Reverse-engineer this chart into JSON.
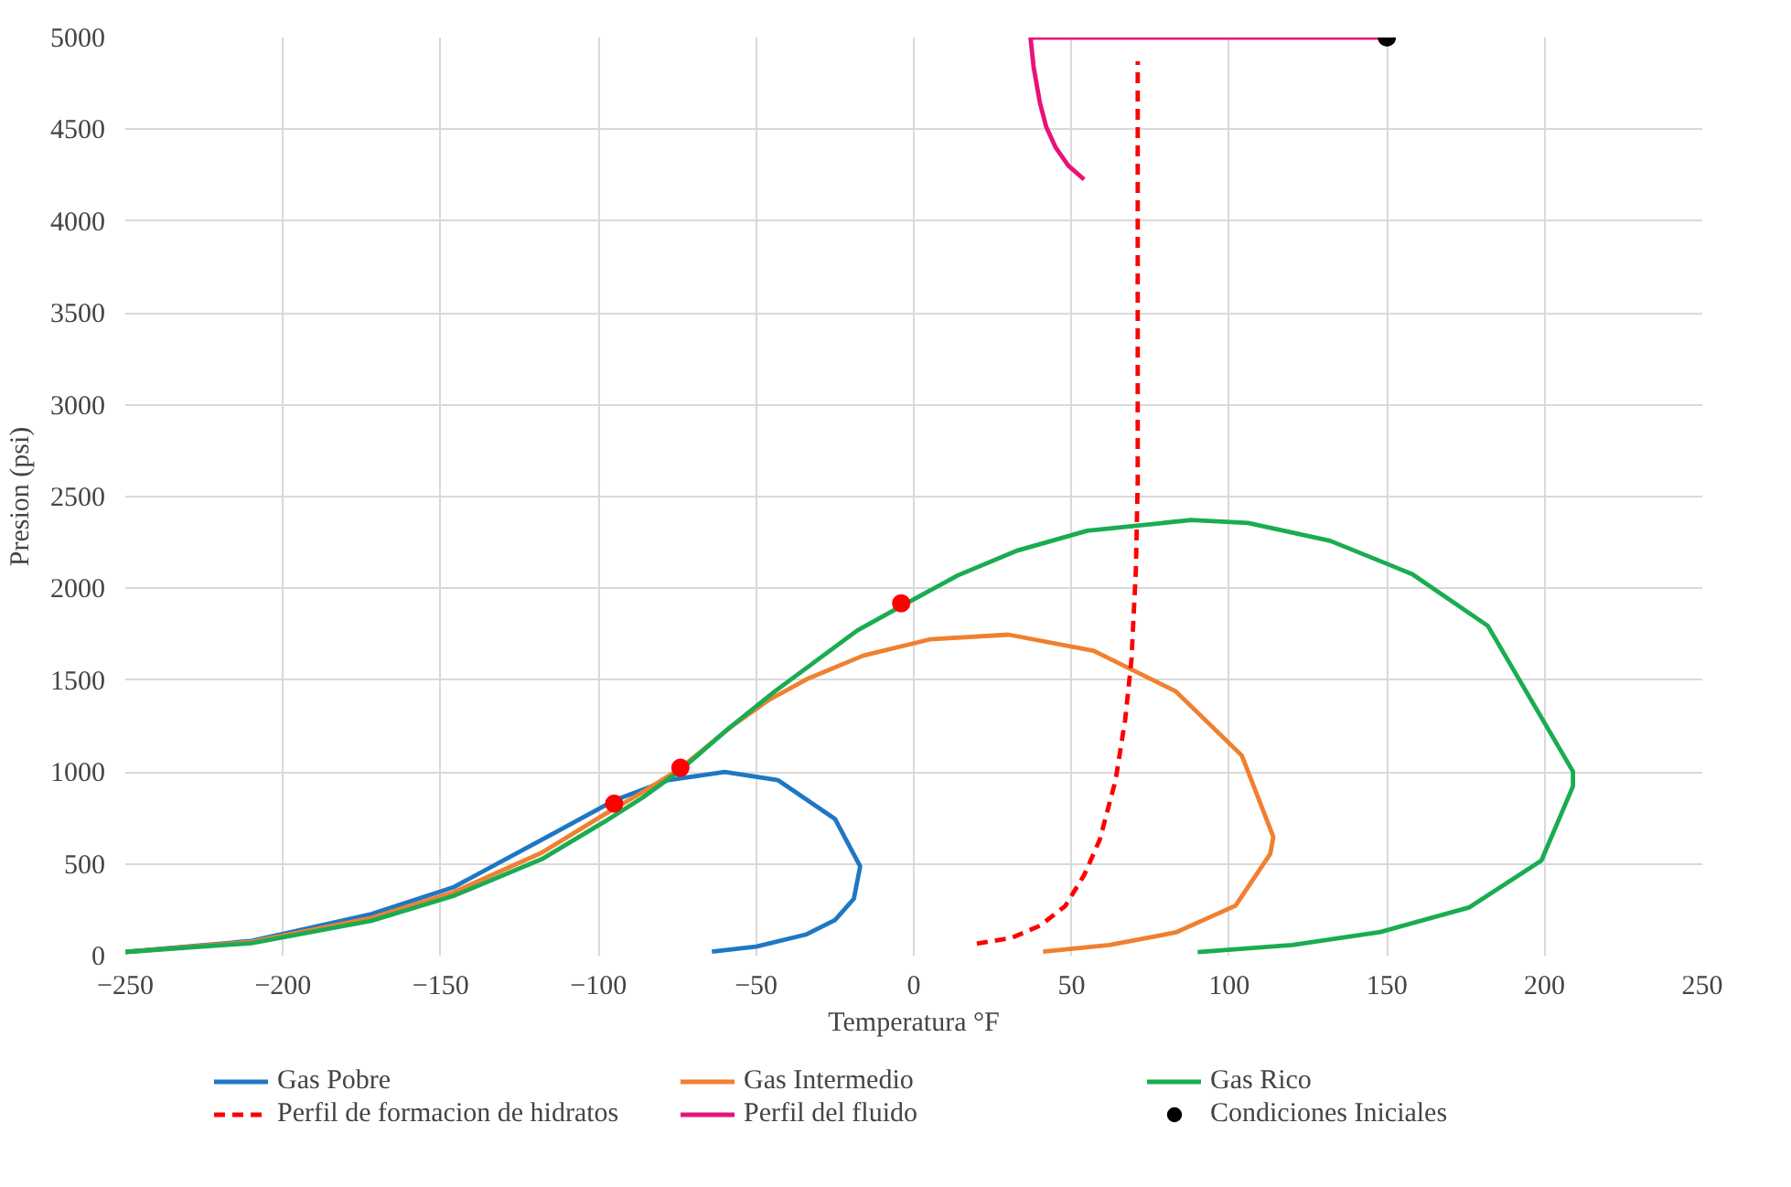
{
  "chart_data": {
    "type": "line",
    "xlabel": "Temperatura °F",
    "ylabel": "Presion (psi)",
    "xlim": [
      -250,
      250
    ],
    "ylim": [
      0,
      5000
    ],
    "xticks": [
      -250,
      -200,
      -150,
      -100,
      -50,
      0,
      50,
      100,
      150,
      200,
      250
    ],
    "yticks": [
      0,
      500,
      1000,
      1500,
      2000,
      2500,
      3000,
      3500,
      4000,
      4500,
      5000
    ],
    "grid": true,
    "legend": "bottom",
    "series": [
      {
        "name": "Gas Pobre",
        "color": "#1f77c4",
        "line_style": "solid",
        "x": [
          -250,
          -210,
          -172,
          -146,
          -118,
          -95,
          -78,
          -60,
          -43,
          -25,
          -17,
          -19,
          -25,
          -34,
          -50,
          -64
        ],
        "values": [
          20,
          80,
          226,
          372,
          631,
          845,
          955,
          1000,
          955,
          745,
          486,
          310,
          194,
          116,
          49,
          22
        ]
      },
      {
        "name": "Gas Intermedio",
        "color": "#f08030",
        "line_style": "solid",
        "x": [
          -250,
          -210,
          -172,
          -146,
          -118,
          -98,
          -86,
          -74,
          -58,
          -46,
          -34,
          -16,
          5,
          30,
          57,
          83,
          104,
          114,
          113,
          102,
          83,
          62,
          41
        ],
        "values": [
          20,
          75,
          205,
          345,
          560,
          770,
          890,
          1020,
          1246,
          1392,
          1505,
          1634,
          1722,
          1748,
          1660,
          1440,
          1090,
          647,
          553,
          272,
          126,
          58,
          22
        ]
      },
      {
        "name": "Gas Rico",
        "color": "#1aac50",
        "line_style": "solid",
        "x": [
          -250,
          -210,
          -172,
          -146,
          -118,
          -98,
          -86,
          -74,
          -59,
          -44,
          -18,
          -4,
          14,
          33,
          55,
          88,
          106,
          132,
          158,
          182,
          209,
          209,
          199,
          176,
          148,
          120,
          90
        ],
        "values": [
          20,
          68,
          190,
          325,
          525,
          730,
          860,
          1010,
          1233,
          1440,
          1770,
          1903,
          2071,
          2207,
          2314,
          2372,
          2356,
          2259,
          2078,
          1796,
          1003,
          922,
          518,
          262,
          129,
          58,
          19
        ]
      },
      {
        "color": "#ff0000",
        "type": "scatter",
        "marker": "circle",
        "x": [
          -95,
          -74,
          -4
        ],
        "values": [
          828,
          1023,
          1919
        ]
      },
      {
        "name": "Perfil de formacion de hidratos",
        "color": "#ff0000",
        "line_style": "dashed",
        "x": [
          20,
          31,
          40,
          48,
          54,
          59,
          64,
          67,
          69,
          70.4,
          71,
          71,
          71
        ],
        "values": [
          65,
          97,
          163,
          270,
          438,
          633,
          957,
          1282,
          1607,
          2094,
          2581,
          3500,
          4870
        ]
      },
      {
        "name": "Perfil del fluido",
        "color": "#e8127a",
        "line_style": "solid",
        "x": [
          150,
          37,
          38,
          40,
          42,
          45,
          49,
          54
        ],
        "values": [
          5000,
          5000,
          4838,
          4643,
          4513,
          4400,
          4302,
          4227
        ]
      },
      {
        "name": "Condiciones Iniciales",
        "color": "#000000",
        "type": "scatter",
        "marker": "circle",
        "x": [
          150
        ],
        "values": [
          5000
        ]
      }
    ]
  }
}
